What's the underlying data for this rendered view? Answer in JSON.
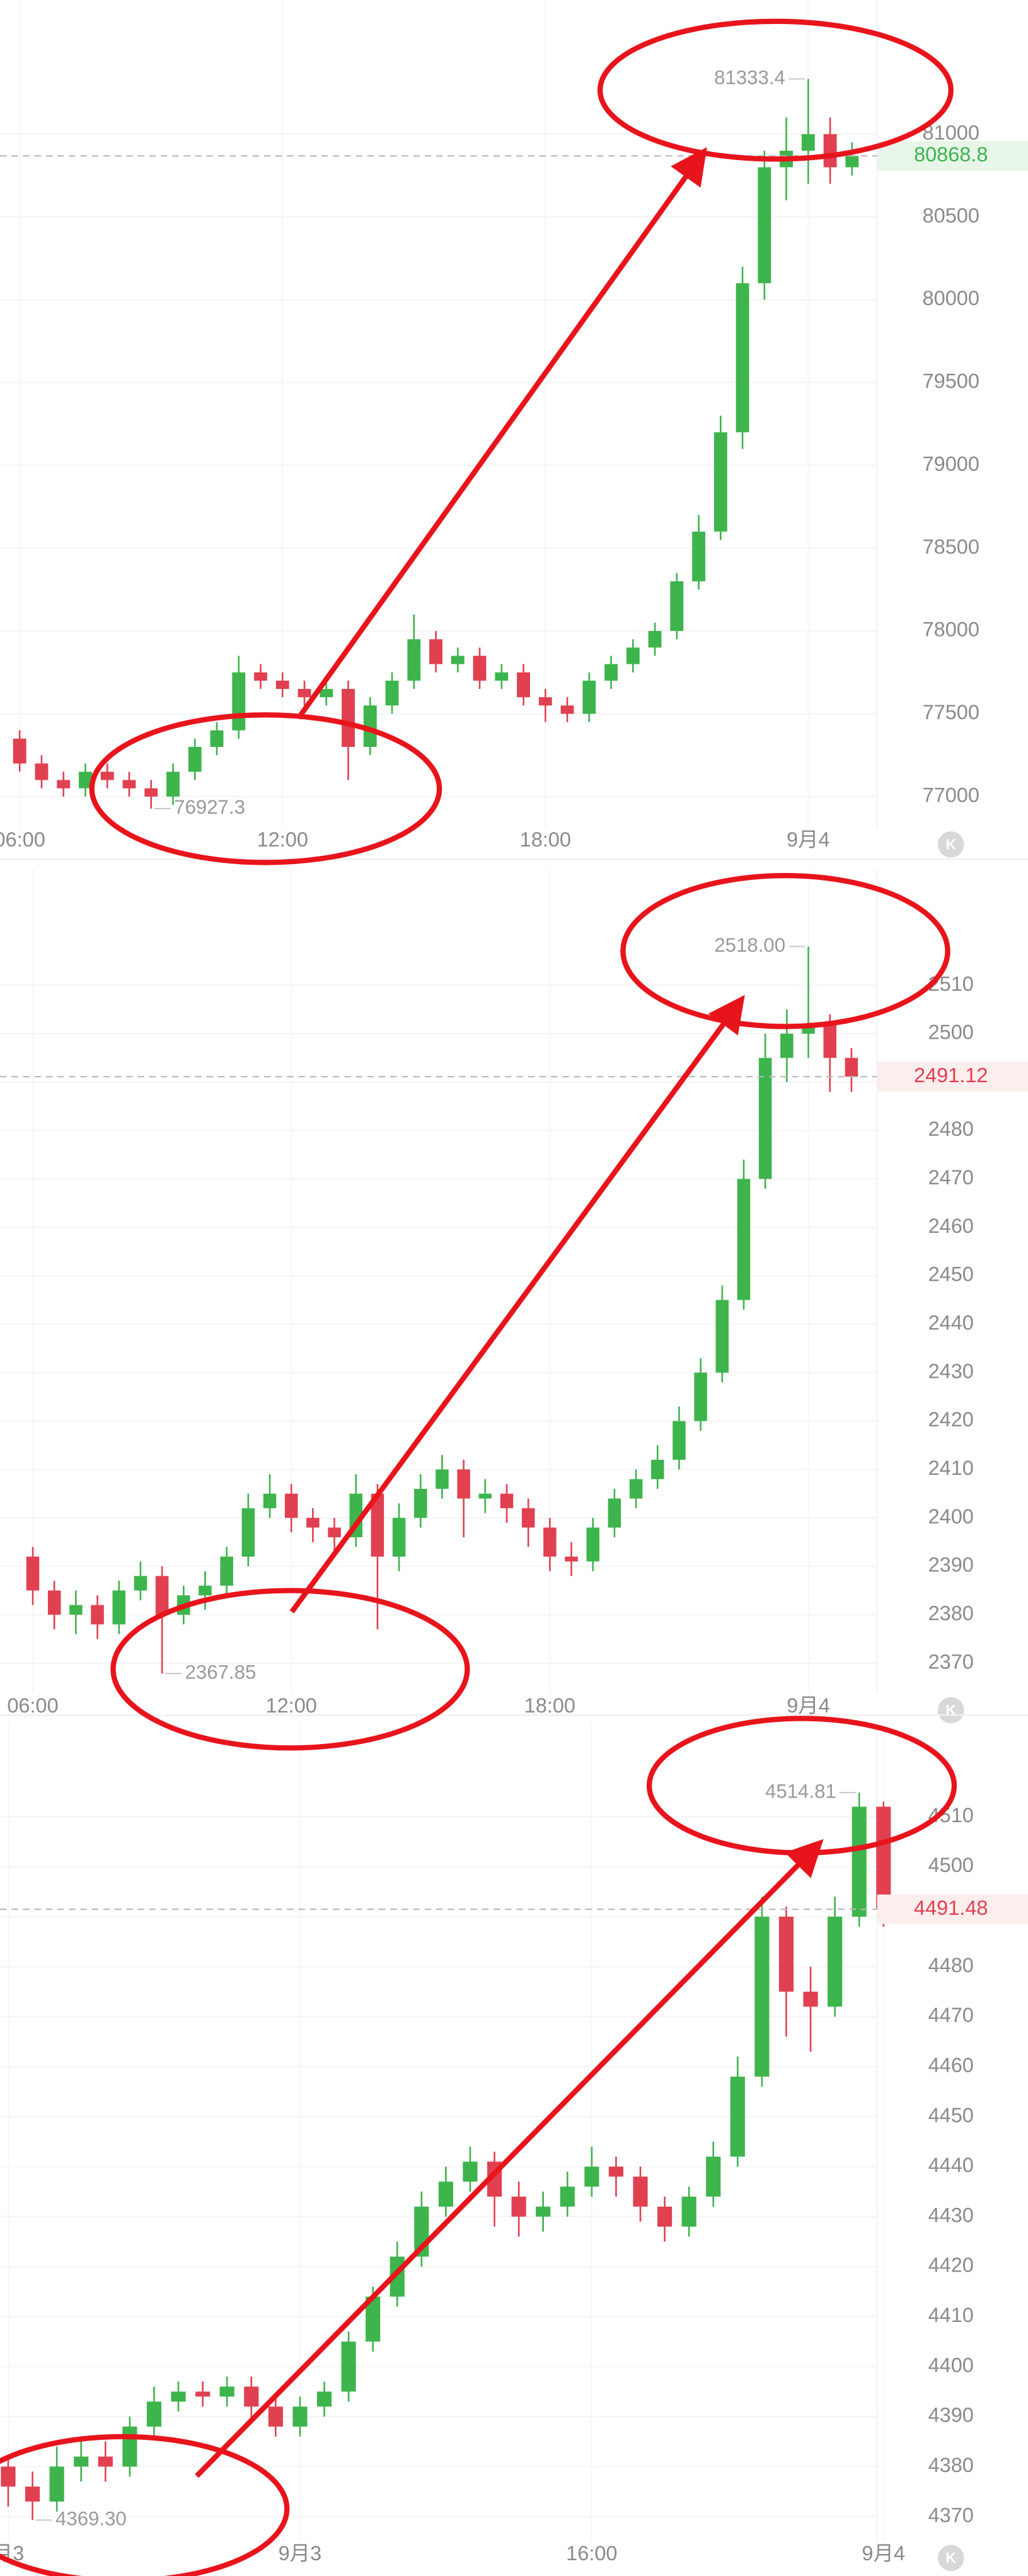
{
  "chart_data": [
    {
      "type": "candlestick",
      "categories": [
        "06:00",
        null,
        null,
        null,
        null,
        null,
        null,
        null,
        null,
        null,
        null,
        null,
        "12:00",
        null,
        null,
        null,
        null,
        null,
        null,
        null,
        null,
        null,
        null,
        null,
        "18:00",
        null,
        null,
        null,
        null,
        null,
        null,
        null,
        null,
        null,
        null,
        null,
        "9月4",
        null,
        null
      ],
      "open": [
        77350,
        77200,
        77100,
        77050,
        77150,
        77100,
        77050,
        77000,
        77150,
        77300,
        77400,
        77750,
        77700,
        77650,
        77600,
        77650,
        77300,
        77550,
        77700,
        77950,
        77800,
        77850,
        77700,
        77750,
        77600,
        77550,
        77500,
        77700,
        77800,
        77900,
        78000,
        78300,
        78600,
        79200,
        80100,
        80800,
        80900,
        81000,
        80800
      ],
      "high": [
        77400,
        77250,
        77150,
        77200,
        77200,
        77150,
        77100,
        77200,
        77350,
        77450,
        77850,
        77800,
        77750,
        77700,
        77700,
        77700,
        77600,
        77750,
        78100,
        78000,
        77900,
        77900,
        77800,
        77800,
        77650,
        77600,
        77750,
        77850,
        77950,
        78050,
        78350,
        78700,
        79300,
        80200,
        80900,
        81100,
        81333.4,
        81100,
        80950
      ],
      "low": [
        77150,
        77050,
        77000,
        77000,
        77050,
        77000,
        76927.3,
        76950,
        77100,
        77250,
        77350,
        77650,
        77600,
        77550,
        77550,
        77100,
        77250,
        77500,
        77650,
        77750,
        77750,
        77650,
        77650,
        77550,
        77450,
        77450,
        77450,
        77650,
        77750,
        77850,
        77950,
        78250,
        78550,
        79100,
        80000,
        80600,
        80700,
        80700,
        80750
      ],
      "close": [
        77200,
        77100,
        77050,
        77150,
        77100,
        77050,
        77000,
        77150,
        77300,
        77400,
        77750,
        77700,
        77650,
        77600,
        77650,
        77300,
        77550,
        77700,
        77950,
        77800,
        77850,
        77700,
        77750,
        77600,
        77550,
        77500,
        77700,
        77800,
        77900,
        78000,
        78300,
        78600,
        79200,
        80100,
        80800,
        80900,
        81000,
        80800,
        80868.8
      ],
      "up_color": "#3db44c",
      "down_color": "#e04050",
      "ylim": [
        76810,
        81810
      ],
      "yticks": [
        77000,
        77500,
        78000,
        78500,
        79000,
        79500,
        80000,
        80500,
        81000
      ],
      "max_label": "81333.4",
      "min_label": "76927.3",
      "last_price": "80868.8",
      "last_price_color": "#3db44c",
      "last_price_bg": "#e8f6ea",
      "badge": "K"
    },
    {
      "type": "candlestick",
      "categories": [
        "06:00",
        null,
        null,
        null,
        null,
        null,
        null,
        null,
        null,
        null,
        null,
        null,
        "12:00",
        null,
        null,
        null,
        null,
        null,
        null,
        null,
        null,
        null,
        null,
        null,
        "18:00",
        null,
        null,
        null,
        null,
        null,
        null,
        null,
        null,
        null,
        null,
        null,
        "9月4",
        null,
        null
      ],
      "open": [
        2392,
        2385,
        2380,
        2382,
        2378,
        2385,
        2388,
        2380,
        2384,
        2386,
        2392,
        2402,
        2405,
        2400,
        2398,
        2396,
        2405,
        2392,
        2400,
        2406,
        2410,
        2404,
        2405,
        2402,
        2398,
        2392,
        2391,
        2398,
        2404,
        2408,
        2412,
        2420,
        2430,
        2445,
        2470,
        2495,
        2500,
        2502,
        2495
      ],
      "high": [
        2394,
        2387,
        2385,
        2384,
        2387,
        2391,
        2390,
        2386,
        2389,
        2394,
        2405,
        2409,
        2407,
        2402,
        2400,
        2409,
        2407,
        2403,
        2409,
        2413,
        2412,
        2408,
        2407,
        2404,
        2400,
        2395,
        2400,
        2406,
        2410,
        2415,
        2423,
        2433,
        2448,
        2474,
        2500,
        2505,
        2518,
        2504,
        2497
      ],
      "low": [
        2382,
        2377,
        2376,
        2375,
        2376,
        2383,
        2367.85,
        2378,
        2381,
        2384,
        2390,
        2400,
        2397,
        2395,
        2393,
        2394,
        2377,
        2389,
        2398,
        2404,
        2396,
        2401,
        2399,
        2394,
        2389,
        2388,
        2389,
        2396,
        2402,
        2406,
        2410,
        2418,
        2428,
        2443,
        2468,
        2490,
        2495,
        2488,
        2488
      ],
      "close": [
        2385,
        2380,
        2382,
        2378,
        2385,
        2388,
        2380,
        2384,
        2386,
        2392,
        2402,
        2405,
        2400,
        2398,
        2396,
        2405,
        2392,
        2400,
        2406,
        2410,
        2404,
        2405,
        2402,
        2398,
        2392,
        2391,
        2398,
        2404,
        2408,
        2412,
        2420,
        2430,
        2445,
        2470,
        2495,
        2500,
        2502,
        2495,
        2491.12
      ],
      "up_color": "#3db44c",
      "down_color": "#e04050",
      "ylim": [
        2364,
        2534
      ],
      "yticks": [
        2370,
        2380,
        2390,
        2400,
        2410,
        2420,
        2430,
        2440,
        2450,
        2460,
        2470,
        2480,
        2490,
        2500,
        2510
      ],
      "max_label": "2518.00",
      "min_label": "2367.85",
      "last_price": "2491.12",
      "last_price_color": "#e04050",
      "last_price_bg": "#fdeeee",
      "badge": "K"
    },
    {
      "type": "candlestick",
      "categories": [
        "月3",
        null,
        null,
        null,
        null,
        null,
        null,
        null,
        null,
        null,
        null,
        null,
        "9月3",
        null,
        null,
        null,
        null,
        null,
        null,
        null,
        null,
        null,
        null,
        null,
        "16:00",
        null,
        null,
        null,
        null,
        null,
        null,
        null,
        null,
        null,
        null,
        null,
        "9月4"
      ],
      "open": [
        4380,
        4376,
        4373,
        4380,
        4382,
        4380,
        4388,
        4393,
        4395,
        4394,
        4396,
        4392,
        4388,
        4392,
        4395,
        4405,
        4414,
        4422,
        4432,
        4437,
        4441,
        4434,
        4430,
        4432,
        4436,
        4440,
        4438,
        4432,
        4428,
        4434,
        4442,
        4458,
        4490,
        4475,
        4472,
        4490,
        4512
      ],
      "high": [
        4382,
        4379,
        4384,
        4386,
        4385,
        4390,
        4396,
        4397,
        4397,
        4398,
        4398,
        4394,
        4394,
        4397,
        4407,
        4416,
        4425,
        4435,
        4440,
        4444,
        4443,
        4437,
        4435,
        4439,
        4444,
        4442,
        4440,
        4434,
        4436,
        4445,
        4462,
        4494,
        4492,
        4480,
        4494,
        4514.81,
        4513
      ],
      "low": [
        4372,
        4369.3,
        4371,
        4377,
        4377,
        4378,
        4386,
        4391,
        4392,
        4392,
        4389,
        4386,
        4386,
        4390,
        4393,
        4403,
        4412,
        4420,
        4430,
        4435,
        4428,
        4426,
        4427,
        4430,
        4434,
        4434,
        4429,
        4425,
        4426,
        4432,
        4440,
        4456,
        4466,
        4463,
        4470,
        4488,
        4488
      ],
      "close": [
        4376,
        4373,
        4380,
        4382,
        4380,
        4388,
        4393,
        4395,
        4394,
        4396,
        4392,
        4388,
        4392,
        4395,
        4405,
        4414,
        4422,
        4432,
        4437,
        4441,
        4434,
        4430,
        4432,
        4436,
        4440,
        4438,
        4432,
        4428,
        4434,
        4442,
        4458,
        4490,
        4475,
        4472,
        4490,
        4512,
        4491.48
      ],
      "up_color": "#3db44c",
      "down_color": "#e04050",
      "ylim": [
        4365,
        4529
      ],
      "yticks": [
        4370,
        4380,
        4390,
        4400,
        4410,
        4420,
        4430,
        4440,
        4450,
        4460,
        4470,
        4480,
        4490,
        4500,
        4510
      ],
      "max_label": "4514.81",
      "min_label": "4369.30",
      "last_price": "4491.48",
      "last_price_color": "#e04050",
      "last_price_bg": "#fdeeee",
      "badge": "K"
    }
  ]
}
